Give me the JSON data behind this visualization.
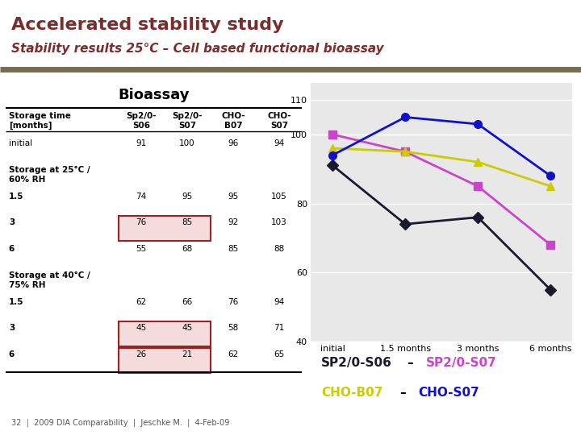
{
  "title_main": "Accelerated stability study",
  "title_sub": "Stability results 25°C – Cell based functional bioassay",
  "title_color": "#7B2C2C",
  "separator_color": "#7B6B50",
  "bg_color": "#ffffff",
  "table_title": "Bioassay",
  "table_header": [
    "Storage time\n[months]",
    "Sp2/0-\nS06",
    "Sp2/0-\nS07",
    "CHO-\nB07",
    "CHO-\nS07"
  ],
  "table_rows": [
    [
      "initial",
      "91",
      "100",
      "96",
      "94"
    ],
    [
      "Storage at 25°C /\n60% RH",
      "",
      "",
      "",
      ""
    ],
    [
      "1.5",
      "74",
      "95",
      "95",
      "105"
    ],
    [
      "3",
      "76",
      "85",
      "92",
      "103"
    ],
    [
      "6",
      "55",
      "68",
      "85",
      "88"
    ],
    [
      "Storage at 40°C /\n75% RH",
      "",
      "",
      "",
      ""
    ],
    [
      "1.5",
      "62",
      "66",
      "76",
      "94"
    ],
    [
      "3",
      "45",
      "45",
      "58",
      "71"
    ],
    [
      "6",
      "26",
      "21",
      "62",
      "65"
    ]
  ],
  "highlight_rows": [
    3,
    7,
    8
  ],
  "highlight_color": "#F5DCDC",
  "highlight_border_color": "#9B2222",
  "x_labels": [
    "initial",
    "1.5 months",
    "3 months",
    "6 months"
  ],
  "x_values": [
    0,
    1,
    2,
    3
  ],
  "series": [
    {
      "name": "SP2/0-S06",
      "color": "#1A1A2E",
      "marker": "D",
      "markersize": 7,
      "values": [
        91,
        74,
        76,
        55
      ]
    },
    {
      "name": "SP2/0-S07",
      "color": "#CC44CC",
      "marker": "s",
      "markersize": 7,
      "values": [
        100,
        95,
        85,
        68
      ]
    },
    {
      "name": "CHO-B07",
      "color": "#CCCC00",
      "marker": "^",
      "markersize": 7,
      "values": [
        96,
        95,
        92,
        85
      ]
    },
    {
      "name": "CHO-S07",
      "color": "#1111CC",
      "marker": "o",
      "markersize": 7,
      "values": [
        94,
        105,
        103,
        88
      ]
    }
  ],
  "ylim": [
    40,
    115
  ],
  "yticks": [
    40,
    60,
    80,
    100,
    110
  ],
  "chart_bg": "#E8E8E8",
  "footer_text": "32  |  2009 DIA Comparability  |  Jeschke M.  |  4-Feb-09"
}
